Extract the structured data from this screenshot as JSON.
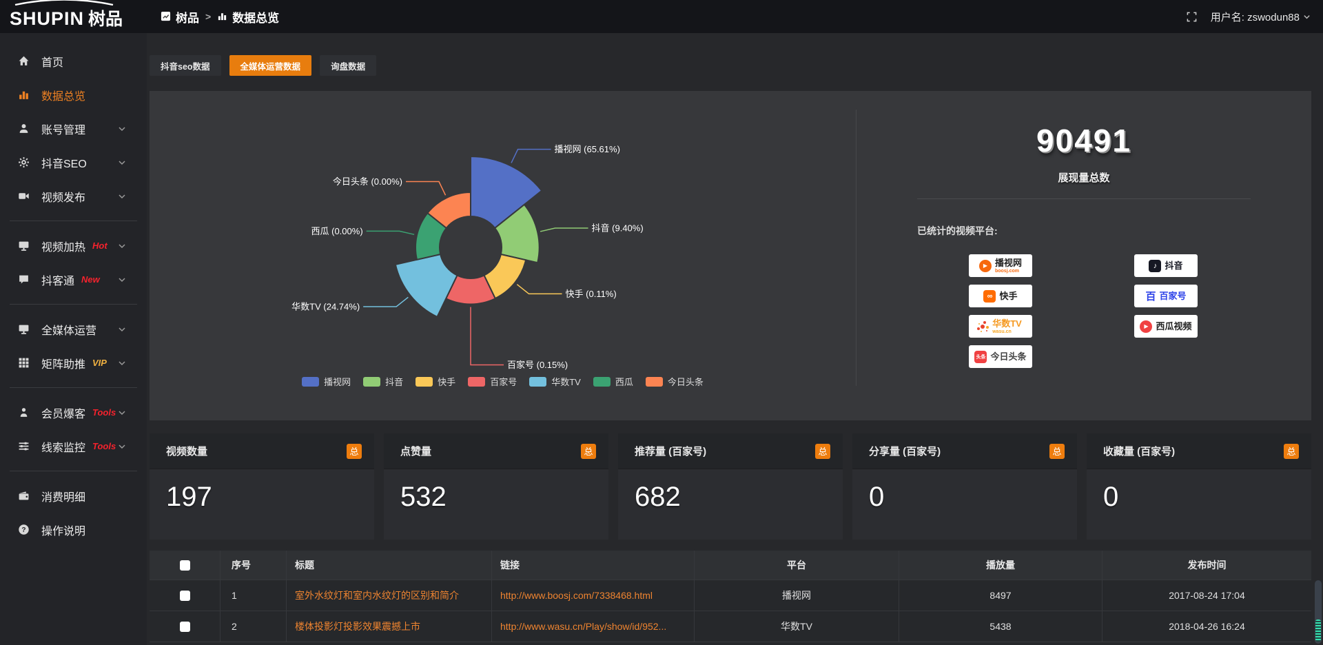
{
  "accent_color": "#ee7d0e",
  "header": {
    "logo_text": "SHUPIN",
    "logo_suffix": "树品",
    "breadcrumb": {
      "root": "树品",
      "separator": ">",
      "current": "数据总览"
    },
    "username": "用户名: zswodun88"
  },
  "sidebar": {
    "groups": [
      {
        "items": [
          {
            "icon": "home",
            "label": "首页"
          },
          {
            "icon": "bar-chart",
            "label": "数据总览",
            "active": true
          },
          {
            "icon": "user",
            "label": "账号管理",
            "chevron": true
          },
          {
            "icon": "gear",
            "label": "抖音SEO",
            "chevron": true
          },
          {
            "icon": "video-camera",
            "label": "视频发布",
            "chevron": true
          }
        ]
      },
      {
        "items": [
          {
            "icon": "monitor",
            "label": "视频加热",
            "badge": "Hot",
            "badge_color": "#f5222d",
            "chevron": true
          },
          {
            "icon": "comment",
            "label": "抖客通",
            "badge": "New",
            "badge_color": "#f5222d",
            "chevron": true
          }
        ]
      },
      {
        "items": [
          {
            "icon": "monitor",
            "label": "全媒体运营",
            "chevron": true
          },
          {
            "icon": "grid",
            "label": "矩阵助推",
            "badge": "VIP",
            "badge_color": "#efb041",
            "chevron": true
          }
        ]
      },
      {
        "items": [
          {
            "icon": "person",
            "label": "会员爆客",
            "badge": "Tools",
            "badge_color": "#f5222d",
            "chevron": true
          },
          {
            "icon": "sliders",
            "label": "线索监控",
            "badge": "Tools",
            "badge_color": "#f5222d",
            "chevron": true
          }
        ]
      },
      {
        "items": [
          {
            "icon": "wallet",
            "label": "消费明细"
          },
          {
            "icon": "question",
            "label": "操作说明"
          }
        ]
      }
    ]
  },
  "tabs": [
    {
      "label": "抖音seo数据",
      "active": false
    },
    {
      "label": "全媒体运营数据",
      "active": true
    },
    {
      "label": "询盘数据",
      "active": false
    }
  ],
  "chart_data": {
    "type": "pie",
    "variant": "nightingale-rose",
    "unit": "%",
    "legend_position": "bottom",
    "items": [
      {
        "name": "播视网",
        "value": 65.61,
        "color": "#5470c6"
      },
      {
        "name": "抖音",
        "value": 9.4,
        "color": "#91cc75"
      },
      {
        "name": "快手",
        "value": 0.11,
        "color": "#fac858"
      },
      {
        "name": "百家号",
        "value": 0.15,
        "color": "#ee6666"
      },
      {
        "name": "华数TV",
        "value": 24.74,
        "color": "#73c0de"
      },
      {
        "name": "西瓜",
        "value": 0.0,
        "color": "#3ba272"
      },
      {
        "name": "今日头条",
        "value": 0.0,
        "color": "#fc8452"
      }
    ]
  },
  "summary": {
    "total_value": "90491",
    "total_label": "展现量总数",
    "platforms_label": "已统计的视频平台:",
    "platform_columns": [
      [
        {
          "name": "播视网",
          "sub": "boosj.com",
          "logo": "boosj",
          "name_color": "#222222",
          "sub_color": "#f7680d"
        },
        {
          "name": "快手",
          "logo": "kuaishou",
          "name_color": "#222222"
        },
        {
          "name": "华数TV",
          "sub": "wasu.cn",
          "logo": "wasu",
          "name_color": "#f59a23",
          "sub_color": "#f6a623"
        },
        {
          "name": "今日头条",
          "logo": "toutiao",
          "name_color": "#444444"
        }
      ],
      [
        {
          "name": "抖音",
          "logo": "douyin",
          "name_color": "#161823"
        },
        {
          "name": "百家号",
          "logo": "baijia",
          "name_color": "#2c41e8"
        },
        {
          "name": "西瓜视频",
          "logo": "xigua",
          "name_color": "#222222"
        }
      ]
    ]
  },
  "stat_cards": [
    {
      "title": "视频数量",
      "badge": "总",
      "value": "197"
    },
    {
      "title": "点赞量",
      "badge": "总",
      "value": "532"
    },
    {
      "title": "推荐量 (百家号)",
      "badge": "总",
      "value": "682"
    },
    {
      "title": "分享量 (百家号)",
      "badge": "总",
      "value": "0"
    },
    {
      "title": "收藏量 (百家号)",
      "badge": "总",
      "value": "0"
    }
  ],
  "table": {
    "headers": [
      "序号",
      "标题",
      "链接",
      "平台",
      "播放量",
      "发布时间"
    ],
    "rows": [
      {
        "index": "1",
        "title": "室外水纹灯和室内水纹灯的区别和简介",
        "link": "http://www.boosj.com/7338468.html",
        "platform": "播视网",
        "plays": "8497",
        "time": "2017-08-24 17:04"
      },
      {
        "index": "2",
        "title": "楼体投影灯投影效果震撼上市",
        "link": "http://www.wasu.cn/Play/show/id/952...",
        "platform": "华数TV",
        "plays": "5438",
        "time": "2018-04-26 16:24"
      }
    ]
  }
}
